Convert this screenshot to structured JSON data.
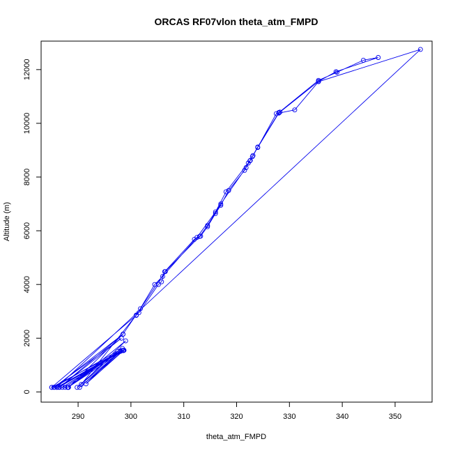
{
  "chart_data": {
    "type": "line",
    "title": "ORCAS RF07vlon theta_atm_FMPD",
    "xlabel": "theta_atm_FMPD",
    "ylabel": "Altitude (m)",
    "xlim": [
      283,
      357
    ],
    "ylim": [
      -380,
      13060
    ],
    "xticks": [
      290,
      300,
      310,
      320,
      330,
      340,
      350
    ],
    "yticks": [
      0,
      2000,
      4000,
      6000,
      8000,
      10000,
      12000
    ],
    "grid": false,
    "legend": "none",
    "series": [
      {
        "color": "#0000ee",
        "marker": "circle",
        "points": [
          [
            285,
            170
          ],
          [
            298,
            1510
          ],
          [
            286,
            170
          ],
          [
            298.5,
            1540
          ],
          [
            287,
            170
          ],
          [
            298,
            1530
          ],
          [
            288,
            170
          ],
          [
            297.5,
            1510
          ],
          [
            289.8,
            170
          ],
          [
            298.3,
            1540
          ],
          [
            290.3,
            170
          ],
          [
            298.6,
            1540
          ],
          [
            291.5,
            300
          ],
          [
            298.4,
            1620
          ],
          [
            285.4,
            170
          ],
          [
            298.2,
            2000
          ],
          [
            286.5,
            170
          ],
          [
            298.5,
            2150
          ],
          [
            288.2,
            170
          ],
          [
            299,
            1900
          ],
          [
            290.6,
            280
          ],
          [
            301,
            2860
          ],
          [
            301.5,
            2950
          ],
          [
            305.2,
            4000
          ],
          [
            305.8,
            4100
          ],
          [
            306.4,
            4480
          ],
          [
            312,
            5680
          ],
          [
            313.2,
            5800
          ],
          [
            314.5,
            6150
          ],
          [
            316,
            6640
          ],
          [
            317,
            6950
          ],
          [
            318.5,
            7500
          ],
          [
            321.5,
            8250
          ],
          [
            322.2,
            8520
          ],
          [
            322.6,
            8620
          ],
          [
            323,
            8760
          ],
          [
            324,
            9100
          ],
          [
            327.5,
            10360
          ],
          [
            328.2,
            10420
          ],
          [
            335.5,
            11560
          ],
          [
            338.8,
            11920
          ],
          [
            346.8,
            12450
          ],
          [
            344,
            12350
          ],
          [
            339,
            11900
          ],
          [
            335.5,
            11600
          ],
          [
            328,
            10400
          ],
          [
            324,
            9120
          ],
          [
            322.5,
            8600
          ],
          [
            318,
            7450
          ],
          [
            316,
            6700
          ],
          [
            312.5,
            5750
          ],
          [
            306,
            4300
          ],
          [
            304.5,
            4000
          ],
          [
            301,
            2850
          ],
          [
            285,
            170
          ],
          [
            286,
            170
          ],
          [
            354.8,
            12750
          ],
          [
            335.5,
            11550
          ],
          [
            331,
            10500
          ],
          [
            328,
            10380
          ],
          [
            324,
            9100
          ],
          [
            323.1,
            8800
          ],
          [
            321.8,
            8350
          ],
          [
            317,
            7000
          ],
          [
            314.5,
            6200
          ],
          [
            313,
            5790
          ],
          [
            306.5,
            4480
          ],
          [
            301.8,
            3100
          ],
          [
            298.5,
            2150
          ],
          [
            285.5,
            170
          ],
          [
            287.5,
            170
          ],
          [
            298,
            1520
          ],
          [
            286.3,
            170
          ],
          [
            298.7,
            1550
          ],
          [
            288.1,
            170
          ]
        ]
      }
    ]
  }
}
